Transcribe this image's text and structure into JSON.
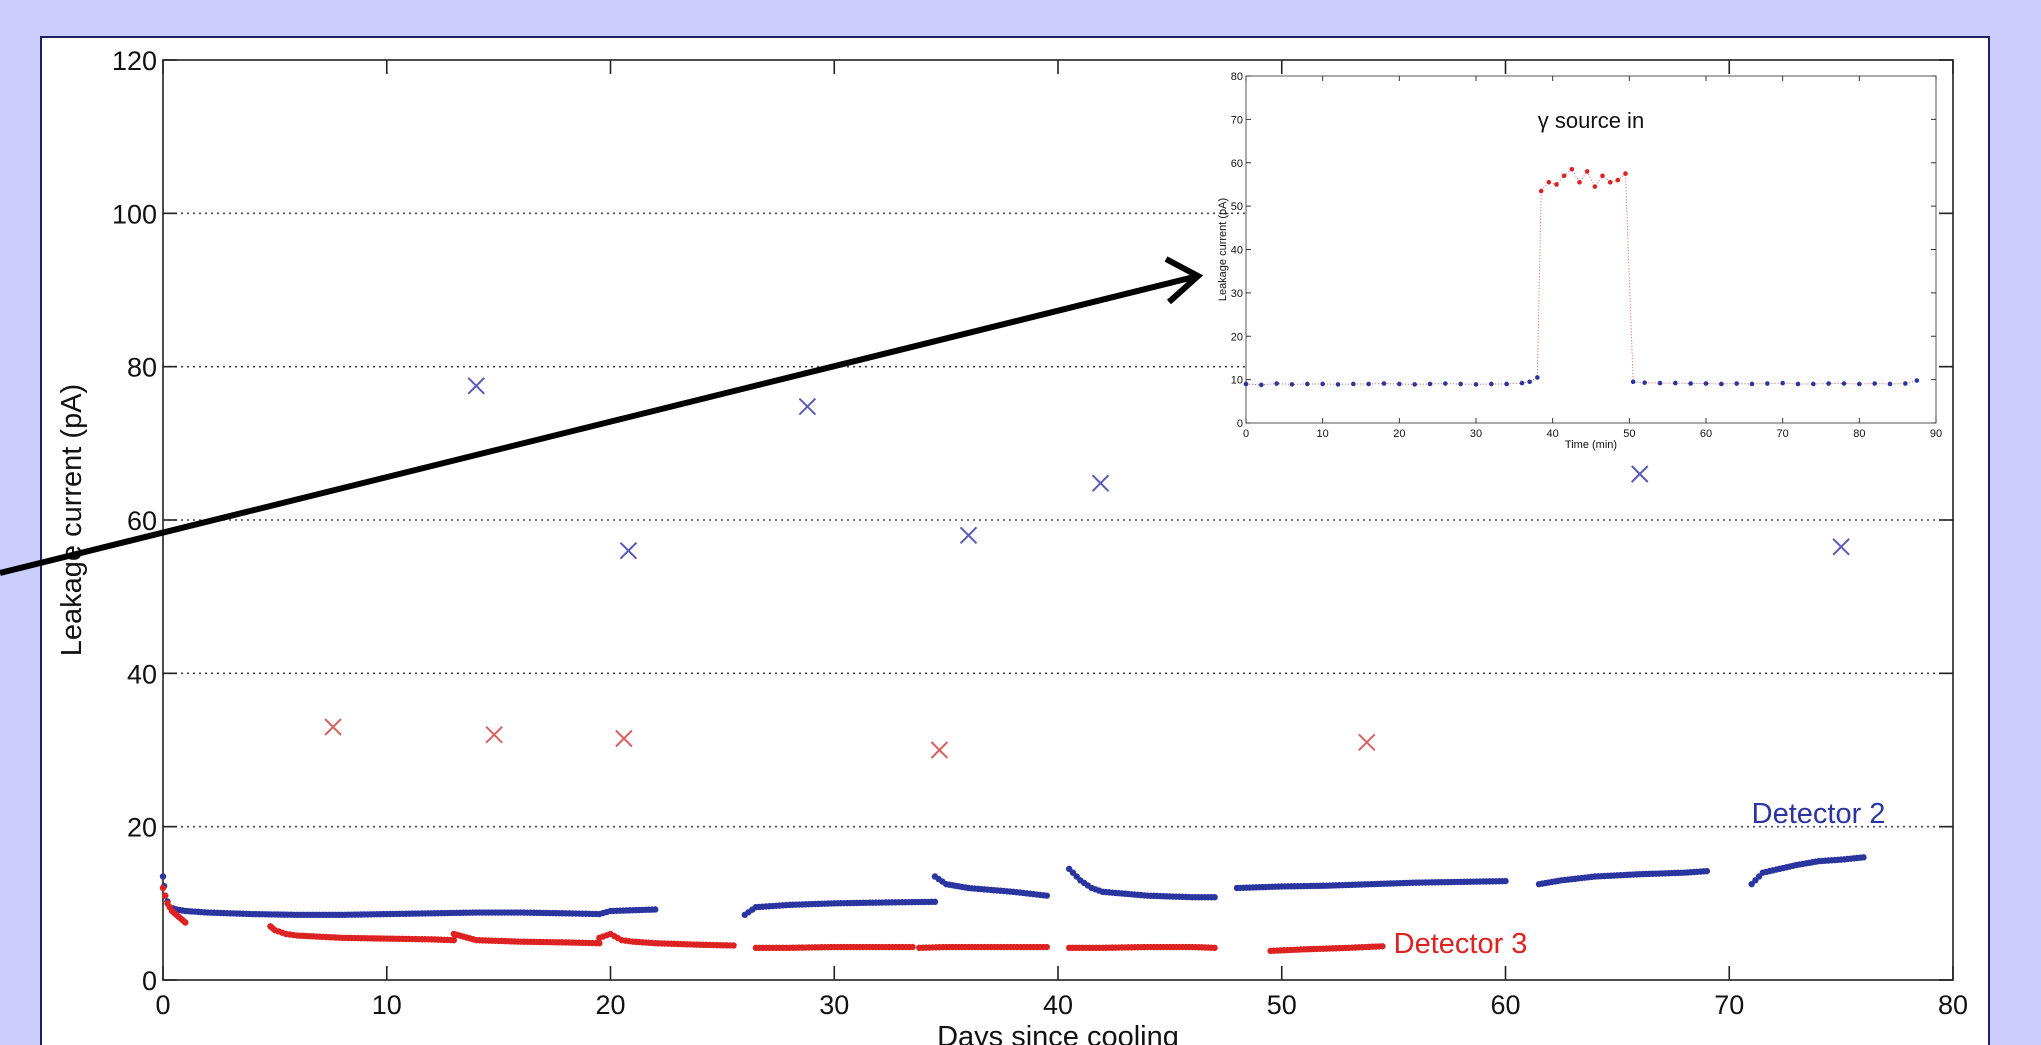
{
  "colors": {
    "background": "#ccccff",
    "frame_border": "#202060",
    "detector2": "#2a35a0",
    "detector3": "#dd2222",
    "detector2_marker": "#5a5ab8",
    "detector3_marker": "#d86060",
    "arrow": "#000000"
  },
  "chart_data": [
    {
      "type": "scatter",
      "xlabel": "Days since cooling",
      "ylabel": "Leakage current (pA)",
      "xlim": [
        0,
        80
      ],
      "ylim": [
        0,
        120
      ],
      "xticks": [
        0,
        10,
        20,
        30,
        40,
        50,
        60,
        70,
        80
      ],
      "yticks": [
        0,
        20,
        40,
        60,
        80,
        100,
        120
      ],
      "grid": "horizontal dotted",
      "annotations": [
        {
          "text": "Detector 2",
          "x": 71,
          "y": 20.5,
          "color": "#2a35a0"
        },
        {
          "text": "Detector 3",
          "x": 55,
          "y": 3.5,
          "color": "#dd2222"
        }
      ],
      "series": [
        {
          "name": "Detector 2",
          "marker": "dot",
          "color": "#2a35a0",
          "segments": [
            {
              "x": [
                0,
                0.1,
                0.3,
                0.6,
                1,
                2,
                4,
                6,
                8,
                10,
                12,
                14,
                16,
                18,
                19.5,
                20,
                21,
                22
              ],
              "y": [
                13.5,
                11,
                9.5,
                9.2,
                9,
                8.8,
                8.6,
                8.5,
                8.5,
                8.6,
                8.7,
                8.8,
                8.8,
                8.7,
                8.6,
                9,
                9.1,
                9.2
              ]
            },
            {
              "x": [
                26,
                26.5,
                28,
                30,
                32,
                34.5
              ],
              "y": [
                8.5,
                9.5,
                9.8,
                10,
                10.1,
                10.2
              ]
            },
            {
              "x": [
                34.5,
                35,
                36,
                38,
                39.5
              ],
              "y": [
                13.5,
                12.5,
                12,
                11.5,
                11
              ]
            },
            {
              "x": [
                40.5,
                41,
                41.5,
                42,
                44,
                46,
                47
              ],
              "y": [
                14.5,
                13,
                12,
                11.5,
                11,
                10.8,
                10.8
              ]
            },
            {
              "x": [
                48,
                50,
                52,
                54,
                56,
                58,
                60
              ],
              "y": [
                12,
                12.2,
                12.3,
                12.5,
                12.7,
                12.8,
                12.9
              ]
            },
            {
              "x": [
                61.5,
                62.5,
                64,
                66,
                68,
                69
              ],
              "y": [
                12.5,
                13,
                13.5,
                13.8,
                14,
                14.2
              ]
            },
            {
              "x": [
                71,
                71.5,
                73,
                74,
                75,
                76
              ],
              "y": [
                12.5,
                14,
                15,
                15.5,
                15.7,
                16
              ]
            }
          ]
        },
        {
          "name": "Detector 3",
          "marker": "dot",
          "color": "#dd2222",
          "segments": [
            {
              "x": [
                0,
                0.2,
                0.4,
                0.6,
                0.8,
                1
              ],
              "y": [
                12,
                10,
                9,
                8.5,
                8,
                7.5
              ]
            },
            {
              "x": [
                4.8,
                5,
                5.5,
                6,
                8,
                10,
                12,
                13
              ],
              "y": [
                7,
                6.5,
                6,
                5.8,
                5.5,
                5.4,
                5.3,
                5.2
              ]
            },
            {
              "x": [
                13,
                14,
                16,
                18,
                19.5
              ],
              "y": [
                6,
                5.2,
                5,
                4.9,
                4.8
              ]
            },
            {
              "x": [
                19.5,
                20,
                20.5,
                21,
                22,
                24,
                25.5
              ],
              "y": [
                5.5,
                6,
                5.2,
                5,
                4.8,
                4.6,
                4.5
              ]
            },
            {
              "x": [
                26.5,
                28,
                30,
                32,
                33.5
              ],
              "y": [
                4.2,
                4.2,
                4.3,
                4.3,
                4.3
              ]
            },
            {
              "x": [
                33.8,
                35,
                37,
                39.5
              ],
              "y": [
                4.2,
                4.3,
                4.3,
                4.3
              ]
            },
            {
              "x": [
                40.5,
                42,
                44,
                46,
                47
              ],
              "y": [
                4.2,
                4.2,
                4.3,
                4.3,
                4.2
              ]
            },
            {
              "x": [
                49.5,
                51,
                53,
                54.5
              ],
              "y": [
                3.8,
                4,
                4.2,
                4.4
              ]
            }
          ]
        },
        {
          "name": "Detector 2",
          "marker": "x",
          "color": "#5a5ab8",
          "points": [
            [
              14,
              77.5
            ],
            [
              20.8,
              56
            ],
            [
              28.8,
              74.8
            ],
            [
              36,
              58
            ],
            [
              41.9,
              64.8
            ],
            [
              66,
              66
            ],
            [
              75,
              56.5
            ]
          ]
        },
        {
          "name": "Detector 3",
          "marker": "x",
          "color": "#d86060",
          "points": [
            [
              7.6,
              33
            ],
            [
              14.8,
              32
            ],
            [
              20.6,
              31.5
            ],
            [
              34.7,
              30
            ],
            [
              53.8,
              31
            ]
          ]
        }
      ]
    },
    {
      "type": "scatter",
      "xlabel": "Time (min)",
      "ylabel": "Leakage current (pA)",
      "xlim": [
        0,
        90
      ],
      "ylim": [
        0,
        80
      ],
      "xticks": [
        0,
        10,
        20,
        30,
        40,
        50,
        60,
        70,
        80,
        90
      ],
      "yticks": [
        0,
        10,
        20,
        30,
        40,
        50,
        60,
        70,
        80
      ],
      "annotations": [
        {
          "text": "γ source in",
          "x": 45,
          "y": 68
        }
      ],
      "series": [
        {
          "marker": "dot",
          "color": "#2a35a0",
          "x": [
            0,
            2,
            4,
            6,
            8,
            10,
            12,
            14,
            16,
            18,
            20,
            22,
            24,
            26,
            28,
            30,
            32,
            34,
            36,
            37,
            38
          ],
          "y": [
            9,
            8.8,
            9.1,
            8.9,
            9,
            9,
            8.9,
            9,
            9,
            9.1,
            9,
            8.9,
            9,
            9.1,
            9,
            8.9,
            9,
            9,
            9.2,
            9.5,
            10.5
          ]
        },
        {
          "marker": "dot",
          "color": "#dd2222",
          "x": [
            38.5,
            39.5,
            40.5,
            41.5,
            42.5,
            43.5,
            44.5,
            45.5,
            46.5,
            47.5,
            48.5,
            49.5
          ],
          "y": [
            53.5,
            55.5,
            55,
            57,
            58.5,
            55.5,
            58,
            54.5,
            57,
            55.5,
            56,
            57.5
          ]
        },
        {
          "marker": "dot",
          "color": "#2a35a0",
          "x": [
            50.5,
            52,
            54,
            56,
            58,
            60,
            62,
            64,
            66,
            68,
            70,
            72,
            74,
            76,
            78,
            80,
            82,
            84,
            86,
            87.5
          ],
          "y": [
            9.5,
            9.3,
            9.2,
            9.2,
            9.1,
            9.1,
            9,
            9.1,
            9,
            9.1,
            9.2,
            9,
            9,
            9.1,
            9.1,
            9,
            9.1,
            9,
            9.1,
            9.8
          ]
        }
      ]
    }
  ]
}
